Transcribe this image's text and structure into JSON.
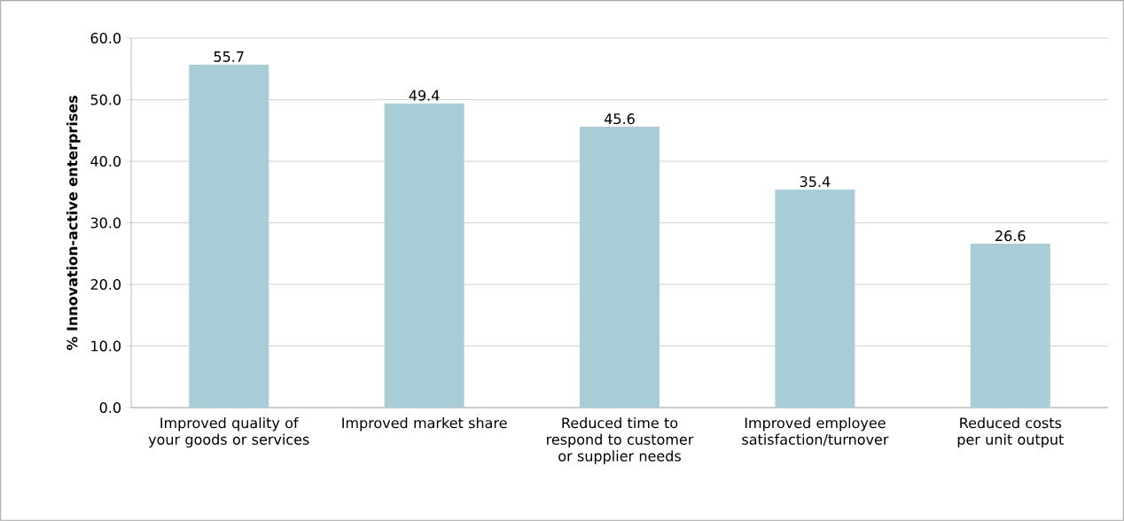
{
  "chart_data": {
    "type": "bar",
    "ylabel": "% Innovation-active enterprises",
    "categories": [
      "Improved quality of your goods or services",
      "Improved market share",
      "Reduced time to respond to customer or supplier needs",
      "Improved employee satisfaction/turnover",
      "Reduced costs per unit output"
    ],
    "values": [
      55.7,
      49.4,
      45.6,
      35.4,
      26.6
    ],
    "color": "#a9cdd6",
    "ylim": [
      0,
      60
    ],
    "yticks": [
      {
        "value": 0,
        "label": "0.0"
      },
      {
        "value": 10,
        "label": "10.0"
      },
      {
        "value": 20,
        "label": "20.0"
      },
      {
        "value": 30,
        "label": "30.0"
      },
      {
        "value": 40,
        "label": "40.0"
      },
      {
        "value": 50,
        "label": "50.0"
      },
      {
        "value": 60,
        "label": "60.0"
      }
    ],
    "grid": "y",
    "data_labels": true
  }
}
